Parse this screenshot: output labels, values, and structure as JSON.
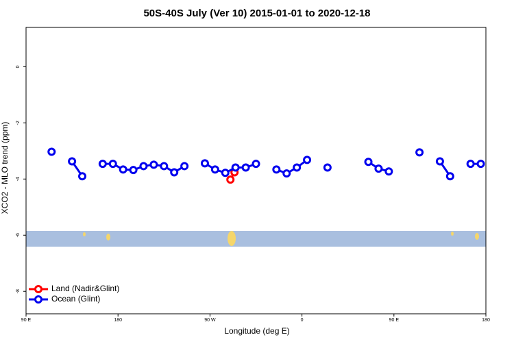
{
  "chart_data": {
    "type": "line",
    "title": "50S-40S July (Ver 10)   2015-01-01 to 2020-12-18",
    "x_label": "Longitude (deg E)",
    "y_label": "XCO2 - MLO trend (ppm)",
    "xlim": [
      90,
      540
    ],
    "xticks": [
      {
        "value": 90,
        "label": "90 E"
      },
      180,
      {
        "value": 270,
        "label": "90 W"
      },
      {
        "value": 360,
        "label": "0"
      },
      {
        "value": 450,
        "label": "90 E"
      },
      {
        "value": 540,
        "label": "180"
      }
    ],
    "ylim": [
      -8.8,
      1.4
    ],
    "yticks": [
      0,
      -2,
      -4,
      -6,
      -8
    ],
    "legend": "bottom-left",
    "series": [
      {
        "name": "Land (Nadir&Glint)",
        "color": "#ff0000",
        "x": [
          290,
          294
        ],
        "values": [
          -4.02,
          -3.76
        ]
      },
      {
        "name": "Ocean (Glint)",
        "color": "#0000ee",
        "x": [
          115,
          125,
          135,
          145,
          155,
          165,
          175,
          185,
          195,
          205,
          215,
          225,
          235,
          245,
          255,
          265,
          275,
          285,
          295,
          305,
          315,
          325,
          335,
          345,
          355,
          365,
          375,
          385,
          395,
          405,
          415,
          425,
          435,
          445,
          455,
          465,
          475,
          485,
          495,
          505,
          515,
          525,
          535
        ],
        "values": [
          -3.03,
          null,
          -3.37,
          -3.9,
          null,
          -3.46,
          -3.46,
          -3.66,
          -3.68,
          -3.54,
          -3.49,
          -3.54,
          -3.76,
          -3.54,
          null,
          -3.44,
          -3.66,
          -3.78,
          -3.59,
          -3.59,
          -3.46,
          null,
          -3.66,
          -3.8,
          -3.59,
          -3.32,
          null,
          -3.59,
          null,
          null,
          null,
          -3.39,
          -3.63,
          -3.73,
          null,
          null,
          -3.05,
          null,
          -3.37,
          -3.9,
          null,
          -3.46,
          -3.46
        ]
      }
    ]
  }
}
